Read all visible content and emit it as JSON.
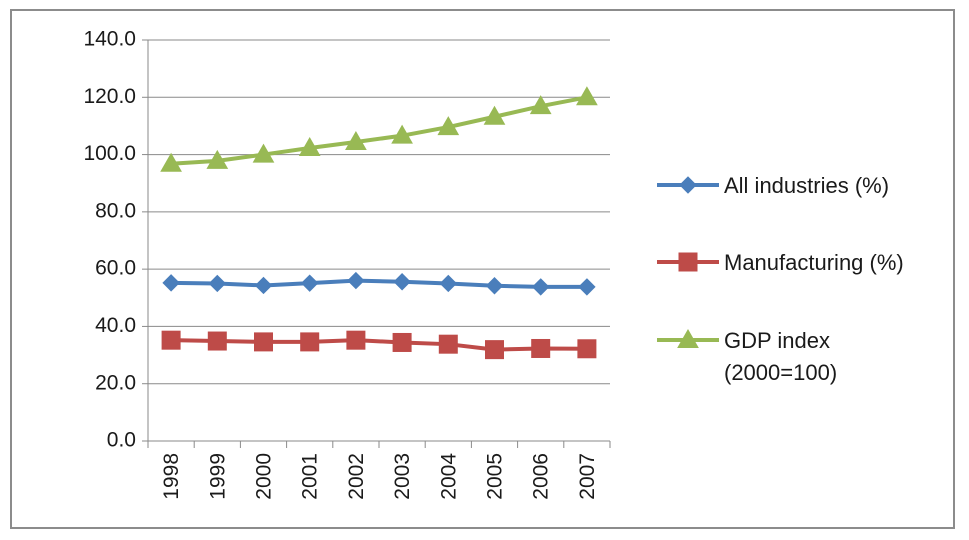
{
  "chart_data": {
    "type": "line",
    "title": "",
    "xlabel": "",
    "ylabel": "",
    "ylim": [
      0,
      140
    ],
    "y_ticks": [
      "0.0",
      "20.0",
      "40.0",
      "60.0",
      "80.0",
      "100.0",
      "120.0",
      "140.0"
    ],
    "categories": [
      "1998",
      "1999",
      "2000",
      "2001",
      "2002",
      "2003",
      "2004",
      "2005",
      "2006",
      "2007"
    ],
    "grid": "horizontal",
    "legend_position": "right",
    "series": [
      {
        "name": "All industries (%)",
        "color": "#4a7ebb",
        "marker": "diamond",
        "values": [
          55.2,
          55.0,
          54.3,
          55.1,
          56.0,
          55.6,
          55.0,
          54.2,
          53.8,
          53.8
        ]
      },
      {
        "name": "Manufacturing (%)",
        "color": "#be4b48",
        "marker": "square",
        "values": [
          35.2,
          34.9,
          34.6,
          34.6,
          35.2,
          34.4,
          33.8,
          31.9,
          32.3,
          32.2
        ]
      },
      {
        "name": "GDP index (2000=100)",
        "name_lines": [
          "GDP index",
          "(2000=100)"
        ],
        "color": "#98b954",
        "marker": "triangle",
        "values": [
          96.8,
          97.8,
          100.0,
          102.3,
          104.4,
          106.6,
          109.6,
          113.2,
          116.9,
          120.0
        ]
      }
    ]
  }
}
